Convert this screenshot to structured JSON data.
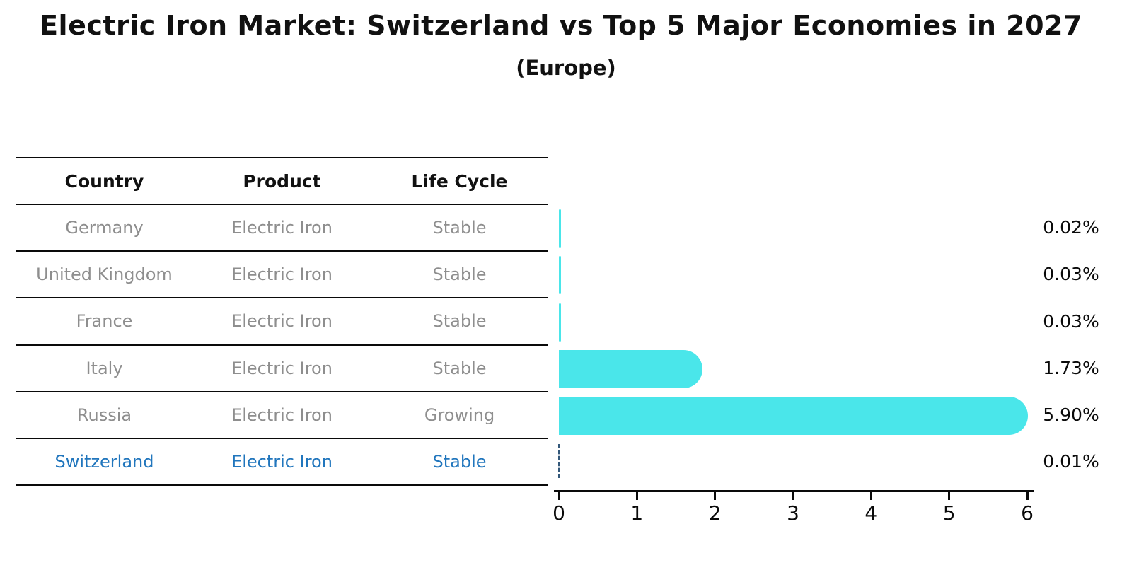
{
  "title": "Electric Iron Market: Switzerland vs Top 5 Major Economies in 2027",
  "subtitle": "(Europe)",
  "table": {
    "headers": [
      "Country",
      "Product",
      "Life Cycle"
    ],
    "rows": [
      {
        "country": "Germany",
        "product": "Electric Iron",
        "life_cycle": "Stable"
      },
      {
        "country": "United Kingdom",
        "product": "Electric Iron",
        "life_cycle": "Stable"
      },
      {
        "country": "France",
        "product": "Electric Iron",
        "life_cycle": "Stable"
      },
      {
        "country": "Italy",
        "product": "Electric Iron",
        "life_cycle": "Stable"
      },
      {
        "country": "Russia",
        "product": "Electric Iron",
        "life_cycle": "Growing"
      },
      {
        "country": "Switzerland",
        "product": "Electric Iron",
        "life_cycle": "Stable"
      }
    ],
    "highlight_row_index": 5
  },
  "chart_data": {
    "type": "bar",
    "orientation": "horizontal",
    "title": "Electric Iron Market: Switzerland vs Top 5 Major Economies in 2027",
    "subtitle": "(Europe)",
    "categories": [
      "Germany",
      "United Kingdom",
      "France",
      "Italy",
      "Russia",
      "Switzerland"
    ],
    "values": [
      0.02,
      0.03,
      0.03,
      1.73,
      5.9,
      0.01
    ],
    "value_labels": [
      "0.02%",
      "0.03%",
      "0.03%",
      "1.73%",
      "5.90%",
      "0.01%"
    ],
    "unit": "%",
    "xlim": [
      0,
      6
    ],
    "x_ticks": [
      0,
      1,
      2,
      3,
      4,
      5,
      6
    ],
    "highlight_index": 5,
    "highlight_style": "dashed-outline",
    "grid": false,
    "legend": false
  },
  "colors": {
    "bar": "#4ae6ea",
    "highlight_dash": "#33587a",
    "table_text": "#8e8e8e",
    "highlight_text": "#2176bd",
    "axis_and_text": "#0a0a0a"
  }
}
